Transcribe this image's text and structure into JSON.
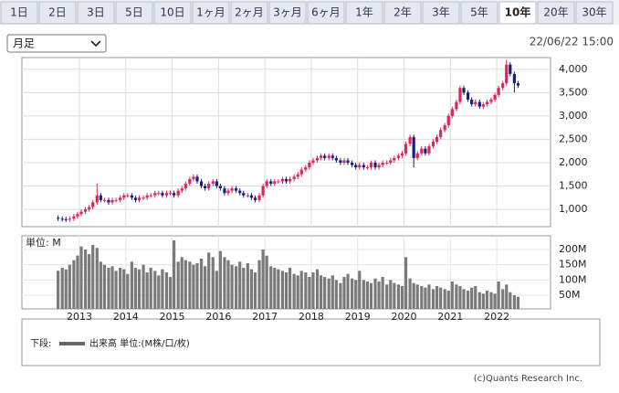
{
  "tabs": [
    "1日",
    "2日",
    "3日",
    "5日",
    "10日",
    "1ヶ月",
    "2ヶ月",
    "3ヶ月",
    "6ヶ月",
    "1年",
    "2年",
    "3年",
    "5年",
    "10年",
    "20年",
    "30年"
  ],
  "selected_tab": 13,
  "select": "月足",
  "timestamp": "22/06/22 15:00",
  "legend": {
    "prefix": "下段:",
    "text": "出来高 単位:(M株/口/枚)"
  },
  "copyright": "(c)Quants Research Inc.",
  "chart_data": {
    "type": "candlestick",
    "up_color": "#e0245a",
    "down_color": "#1c1c7a",
    "volume_color": "#7a7a7a",
    "grid": true,
    "xlim": [
      2011.76,
      2023.16
    ],
    "xticks": [
      2013,
      2014,
      2015,
      2016,
      2017,
      2018,
      2019,
      2020,
      2021,
      2022
    ],
    "ylim": [
      630,
      4250
    ],
    "yticks": [
      {
        "value": 1000,
        "label": "1,000"
      },
      {
        "value": 1500,
        "label": "1,500"
      },
      {
        "value": 2000,
        "label": "2,000"
      },
      {
        "value": 2500,
        "label": "2,500"
      },
      {
        "value": 3000,
        "label": "3,000"
      },
      {
        "value": 3500,
        "label": "3,500"
      },
      {
        "value": 4000,
        "label": "4,000"
      }
    ],
    "volume_label": "単位: M",
    "volume_ylim": [
      5,
      245
    ],
    "volume_yticks": [
      {
        "value": 50,
        "label": "50M"
      },
      {
        "value": 100,
        "label": "100M"
      },
      {
        "value": 150,
        "label": "150M"
      },
      {
        "value": 200,
        "label": "200M"
      }
    ],
    "x": [
      2012.54,
      2012.63,
      2012.71,
      2012.79,
      2012.88,
      2012.96,
      2013.04,
      2013.13,
      2013.21,
      2013.29,
      2013.38,
      2013.46,
      2013.54,
      2013.63,
      2013.71,
      2013.79,
      2013.88,
      2013.96,
      2014.04,
      2014.13,
      2014.21,
      2014.29,
      2014.38,
      2014.46,
      2014.54,
      2014.63,
      2014.71,
      2014.79,
      2014.88,
      2014.96,
      2015.04,
      2015.13,
      2015.21,
      2015.29,
      2015.38,
      2015.46,
      2015.54,
      2015.63,
      2015.71,
      2015.79,
      2015.88,
      2015.96,
      2016.04,
      2016.13,
      2016.21,
      2016.29,
      2016.38,
      2016.46,
      2016.54,
      2016.63,
      2016.71,
      2016.79,
      2016.88,
      2016.96,
      2017.04,
      2017.13,
      2017.21,
      2017.29,
      2017.38,
      2017.46,
      2017.54,
      2017.63,
      2017.71,
      2017.79,
      2017.88,
      2017.96,
      2018.04,
      2018.13,
      2018.21,
      2018.29,
      2018.38,
      2018.46,
      2018.54,
      2018.63,
      2018.71,
      2018.79,
      2018.88,
      2018.96,
      2019.04,
      2019.13,
      2019.21,
      2019.29,
      2019.38,
      2019.46,
      2019.54,
      2019.63,
      2019.71,
      2019.79,
      2019.88,
      2019.96,
      2020.04,
      2020.13,
      2020.21,
      2020.29,
      2020.38,
      2020.46,
      2020.54,
      2020.63,
      2020.71,
      2020.79,
      2020.88,
      2020.96,
      2021.04,
      2021.13,
      2021.21,
      2021.29,
      2021.38,
      2021.46,
      2021.54,
      2021.63,
      2021.71,
      2021.79,
      2021.88,
      2021.96,
      2022.04,
      2022.13,
      2022.21,
      2022.29,
      2022.38,
      2022.46
    ],
    "open": [
      820,
      800,
      790,
      780,
      800,
      850,
      900,
      950,
      1000,
      1050,
      1150,
      1300,
      1200,
      1200,
      1150,
      1200,
      1200,
      1250,
      1300,
      1300,
      1250,
      1200,
      1250,
      1250,
      1300,
      1300,
      1350,
      1350,
      1300,
      1350,
      1350,
      1300,
      1400,
      1450,
      1550,
      1650,
      1700,
      1600,
      1500,
      1450,
      1550,
      1600,
      1500,
      1450,
      1350,
      1400,
      1450,
      1400,
      1350,
      1300,
      1300,
      1250,
      1200,
      1300,
      1500,
      1600,
      1550,
      1600,
      1600,
      1650,
      1600,
      1650,
      1700,
      1750,
      1850,
      1900,
      2000,
      2050,
      2100,
      2150,
      2100,
      2150,
      2100,
      2050,
      2000,
      2050,
      2000,
      1950,
      1900,
      1950,
      1900,
      1900,
      2000,
      1900,
      1950,
      2000,
      2000,
      2050,
      2100,
      2150,
      2200,
      2400,
      2550,
      2100,
      2200,
      2300,
      2200,
      2350,
      2450,
      2550,
      2700,
      2800,
      3000,
      3150,
      3300,
      3600,
      3500,
      3350,
      3250,
      3300,
      3200,
      3250,
      3300,
      3350,
      3450,
      3600,
      3700,
      4100,
      3900,
      3700
    ],
    "high": [
      870,
      850,
      840,
      850,
      900,
      950,
      1000,
      1050,
      1100,
      1200,
      1550,
      1350,
      1250,
      1250,
      1250,
      1250,
      1300,
      1350,
      1350,
      1350,
      1300,
      1300,
      1300,
      1350,
      1350,
      1400,
      1400,
      1400,
      1400,
      1400,
      1400,
      1450,
      1500,
      1600,
      1700,
      1750,
      1750,
      1650,
      1550,
      1600,
      1650,
      1650,
      1550,
      1500,
      1450,
      1500,
      1500,
      1450,
      1400,
      1350,
      1350,
      1300,
      1350,
      1550,
      1650,
      1650,
      1650,
      1650,
      1700,
      1700,
      1700,
      1750,
      1800,
      1900,
      1950,
      2050,
      2100,
      2150,
      2200,
      2200,
      2200,
      2200,
      2150,
      2100,
      2100,
      2100,
      2050,
      2000,
      2000,
      2000,
      1950,
      2050,
      2050,
      2000,
      2050,
      2050,
      2100,
      2150,
      2200,
      2250,
      2450,
      2600,
      2600,
      2250,
      2350,
      2350,
      2400,
      2500,
      2600,
      2750,
      2850,
      3050,
      3200,
      3350,
      3650,
      3650,
      3550,
      3400,
      3350,
      3350,
      3300,
      3350,
      3400,
      3500,
      3650,
      3750,
      4200,
      4150,
      3950,
      3750
    ],
    "low": [
      750,
      740,
      730,
      730,
      750,
      800,
      850,
      900,
      950,
      1000,
      1100,
      1150,
      1150,
      1100,
      1100,
      1150,
      1150,
      1200,
      1250,
      1200,
      1150,
      1150,
      1200,
      1200,
      1250,
      1250,
      1300,
      1250,
      1250,
      1300,
      1250,
      1250,
      1350,
      1400,
      1500,
      1600,
      1550,
      1450,
      1400,
      1400,
      1500,
      1450,
      1400,
      1300,
      1300,
      1350,
      1350,
      1300,
      1250,
      1250,
      1200,
      1150,
      1150,
      1250,
      1450,
      1500,
      1500,
      1550,
      1550,
      1550,
      1550,
      1600,
      1650,
      1700,
      1800,
      1850,
      1950,
      2000,
      2050,
      2050,
      2050,
      2050,
      2000,
      1950,
      1950,
      1950,
      1900,
      1850,
      1850,
      1850,
      1850,
      1850,
      1850,
      1850,
      1900,
      1950,
      1950,
      2000,
      2050,
      2100,
      2150,
      2350,
      1900,
      2050,
      2150,
      2150,
      2150,
      2300,
      2400,
      2500,
      2650,
      2750,
      2950,
      3100,
      3250,
      3450,
      3300,
      3200,
      3200,
      3150,
      3150,
      3200,
      3250,
      3300,
      3400,
      3550,
      3650,
      3850,
      3500,
      3600
    ],
    "close": [
      800,
      790,
      780,
      800,
      850,
      900,
      950,
      1000,
      1050,
      1150,
      1300,
      1200,
      1200,
      1150,
      1200,
      1200,
      1250,
      1300,
      1300,
      1250,
      1200,
      1250,
      1250,
      1300,
      1300,
      1350,
      1350,
      1300,
      1350,
      1350,
      1300,
      1400,
      1450,
      1550,
      1650,
      1700,
      1600,
      1500,
      1450,
      1550,
      1600,
      1500,
      1450,
      1350,
      1400,
      1450,
      1400,
      1350,
      1300,
      1300,
      1250,
      1200,
      1300,
      1500,
      1600,
      1550,
      1600,
      1600,
      1650,
      1600,
      1650,
      1700,
      1750,
      1850,
      1900,
      2000,
      2050,
      2100,
      2150,
      2100,
      2150,
      2100,
      2050,
      2000,
      2050,
      2000,
      1950,
      1900,
      1950,
      1900,
      1900,
      2000,
      1900,
      1950,
      2000,
      2000,
      2050,
      2100,
      2150,
      2200,
      2400,
      2550,
      2100,
      2200,
      2300,
      2200,
      2350,
      2450,
      2550,
      2700,
      2800,
      3000,
      3150,
      3300,
      3600,
      3500,
      3350,
      3250,
      3300,
      3200,
      3250,
      3300,
      3350,
      3450,
      3600,
      3700,
      4100,
      3900,
      3700,
      3650
    ],
    "volume": [
      130,
      140,
      135,
      150,
      165,
      180,
      210,
      200,
      185,
      215,
      205,
      160,
      150,
      140,
      145,
      130,
      140,
      135,
      120,
      160,
      140,
      135,
      150,
      125,
      140,
      130,
      115,
      135,
      125,
      110,
      230,
      160,
      175,
      165,
      160,
      150,
      155,
      170,
      145,
      190,
      175,
      130,
      195,
      175,
      165,
      150,
      145,
      160,
      140,
      155,
      135,
      125,
      165,
      200,
      180,
      145,
      140,
      135,
      130,
      125,
      140,
      120,
      115,
      130,
      125,
      110,
      125,
      135,
      115,
      110,
      105,
      115,
      100,
      90,
      110,
      120,
      105,
      100,
      130,
      100,
      95,
      90,
      105,
      95,
      110,
      85,
      100,
      90,
      85,
      80,
      175,
      105,
      90,
      85,
      80,
      75,
      85,
      70,
      80,
      75,
      70,
      65,
      95,
      85,
      80,
      70,
      65,
      75,
      80,
      60,
      55,
      65,
      60,
      55,
      95,
      70,
      85,
      60,
      50,
      45
    ]
  }
}
